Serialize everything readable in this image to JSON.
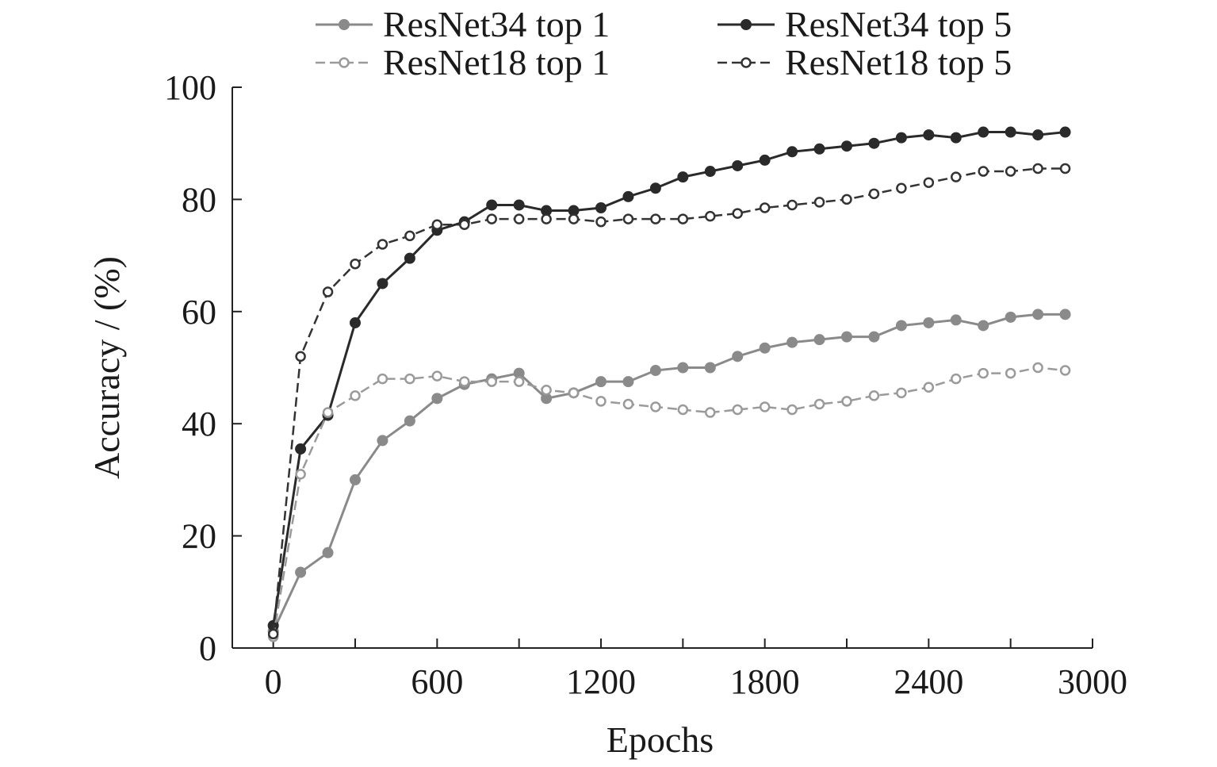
{
  "chart_data": {
    "type": "line",
    "title": "",
    "xlabel": "Epochs",
    "ylabel": "Accuracy / (%)",
    "xlim": [
      -150,
      3000
    ],
    "ylim": [
      0,
      100
    ],
    "xticks": [
      0,
      600,
      1200,
      1800,
      2400,
      3000
    ],
    "yticks": [
      0,
      20,
      40,
      60,
      80,
      100
    ],
    "x_minor_ticks": [
      300,
      900,
      1500,
      2100,
      2700
    ],
    "grid": false,
    "legend_position": "top",
    "x": [
      0,
      100,
      200,
      300,
      400,
      500,
      600,
      700,
      800,
      900,
      1000,
      1100,
      1200,
      1300,
      1400,
      1500,
      1600,
      1700,
      1800,
      1900,
      2000,
      2100,
      2200,
      2300,
      2400,
      2500,
      2600,
      2700,
      2800,
      2900
    ],
    "series": [
      {
        "name": "ResNet34 top 1",
        "style": "solid",
        "marker": "filled",
        "color": "#8a8a8a",
        "values": [
          3,
          13.5,
          17,
          30,
          37,
          40.5,
          44.5,
          47,
          48,
          49,
          44.5,
          45.5,
          47.5,
          47.5,
          49.5,
          50,
          50,
          52,
          53.5,
          54.5,
          55,
          55.5,
          55.5,
          57.5,
          58,
          58.5,
          57.5,
          59,
          59.5,
          59.5
        ]
      },
      {
        "name": "ResNet34 top 5",
        "style": "solid",
        "marker": "filled",
        "color": "#2a2a2a",
        "values": [
          4,
          35.5,
          41.5,
          58,
          65,
          69.5,
          74.5,
          76,
          79,
          79,
          78,
          78,
          78.5,
          80.5,
          82,
          84,
          85,
          86,
          87,
          88.5,
          89,
          89.5,
          90,
          91,
          91.5,
          91,
          92,
          92,
          91.5,
          92
        ]
      },
      {
        "name": "ResNet18 top 1",
        "style": "dashed",
        "marker": "open",
        "color": "#9a9a9a",
        "values": [
          2,
          31,
          42,
          45,
          48,
          48,
          48.5,
          47.5,
          47.5,
          47.5,
          46,
          45.5,
          44,
          43.5,
          43,
          42.5,
          42,
          42.5,
          43,
          42.5,
          43.5,
          44,
          45,
          45.5,
          46.5,
          48,
          49,
          49,
          50,
          49.5
        ]
      },
      {
        "name": "ResNet18 top 5",
        "style": "dashed",
        "marker": "open",
        "color": "#333333",
        "values": [
          2.5,
          52,
          63.5,
          68.5,
          72,
          73.5,
          75.5,
          75.5,
          76.5,
          76.5,
          76.5,
          76.5,
          76,
          76.5,
          76.5,
          76.5,
          77,
          77.5,
          78.5,
          79,
          79.5,
          80,
          81,
          82,
          83,
          84,
          85,
          85,
          85.5,
          85.5
        ]
      }
    ]
  }
}
